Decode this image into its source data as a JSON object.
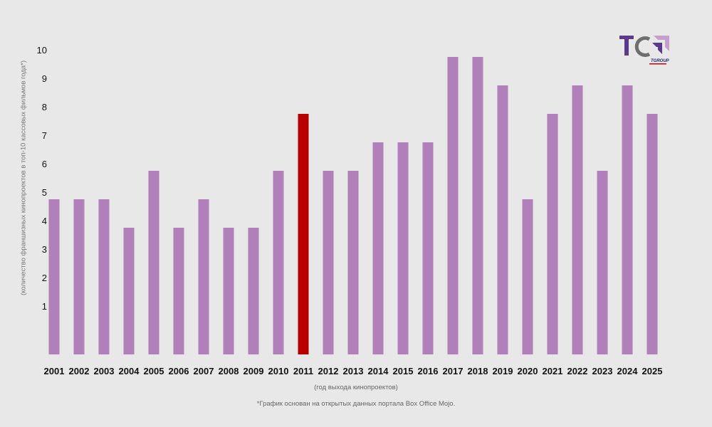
{
  "chart_data": {
    "type": "bar",
    "title": "",
    "xlabel": "(год выхода кинопроектов)",
    "ylabel": "(количество франшизных кинопроектов в топ-10 кассовых фильмов года*)",
    "categories": [
      "2001",
      "2002",
      "2003",
      "2004",
      "2005",
      "2006",
      "2007",
      "2008",
      "2009",
      "2010",
      "2011",
      "2012",
      "2013",
      "2014",
      "2015",
      "2016",
      "2017",
      "2018",
      "2019",
      "2020",
      "2021",
      "2022",
      "2023",
      "2024",
      "2025"
    ],
    "values": [
      5,
      5,
      5,
      4,
      6,
      4,
      5,
      4,
      4,
      6,
      8,
      6,
      6,
      7,
      7,
      7,
      10,
      10,
      9,
      5,
      8,
      9,
      6,
      9,
      8
    ],
    "highlight": "2011",
    "yticks": [
      1,
      2,
      3,
      4,
      5,
      6,
      7,
      8,
      9,
      10
    ],
    "ylim": [
      0,
      10
    ],
    "grid": false,
    "colors": {
      "bar": "#b17fb9",
      "highlight": "#b80000",
      "background": "#e8e8e8"
    }
  },
  "footnote": "*График основан на открытых данных портала Box Office Mojo.",
  "logo": {
    "text": "TC",
    "subtext": "GROUP"
  }
}
